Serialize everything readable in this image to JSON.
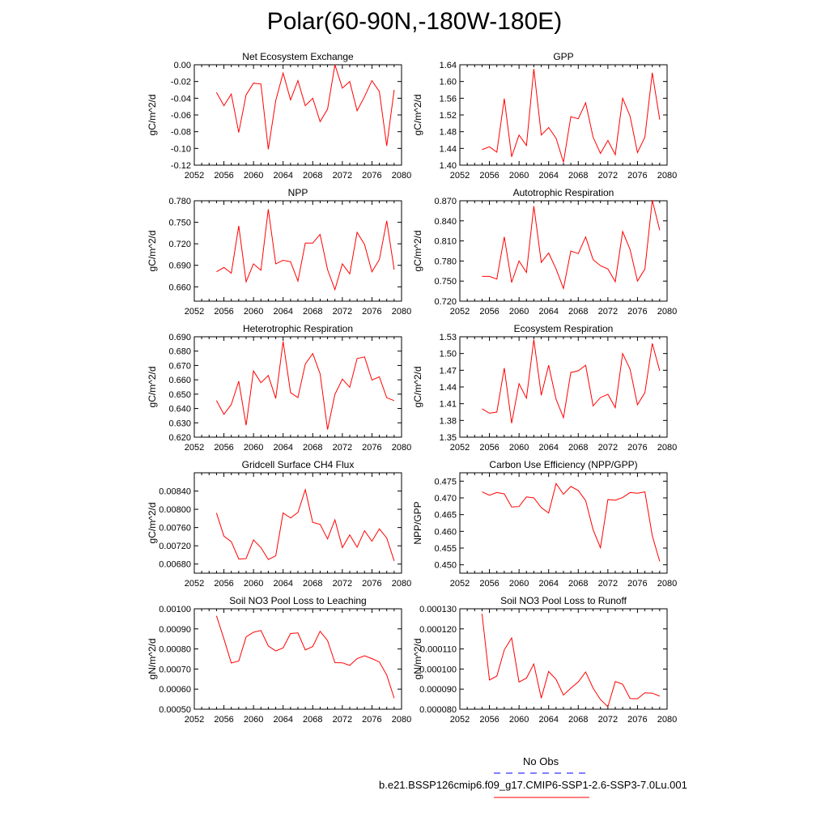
{
  "page": {
    "title": "Polar(60-90N,-180W-180E)"
  },
  "legend": {
    "entries": [
      {
        "label": "No Obs",
        "color": "#0000ff",
        "style": "dashed"
      },
      {
        "label": "b.e21.BSSP126cmip6.f09_g17.CMIP6-SSP1-2.6-SSP3-7.0Lu.001",
        "color": "#ff0000",
        "style": "solid"
      }
    ]
  },
  "chart_data": [
    {
      "type": "line",
      "title": "Net Ecosystem Exchange",
      "ylabel": "gC/m^2/d",
      "xlabel": "",
      "xlim": [
        2052,
        2080
      ],
      "ylim": [
        -0.12,
        0.0
      ],
      "xticks": [
        "2052",
        "2056",
        "2060",
        "2064",
        "2068",
        "2072",
        "2076",
        "2080"
      ],
      "yticks": [
        "0.00",
        "-0.02",
        "-0.04",
        "-0.06",
        "-0.08",
        "-0.10",
        "-0.12"
      ],
      "ytick_values": [
        0.0,
        -0.02,
        -0.04,
        -0.06,
        -0.08,
        -0.1,
        -0.12
      ],
      "x": [
        2055,
        2056,
        2057,
        2058,
        2059,
        2060,
        2061,
        2062,
        2063,
        2064,
        2065,
        2066,
        2067,
        2068,
        2069,
        2070,
        2071,
        2072,
        2073,
        2074,
        2075,
        2076,
        2077,
        2078,
        2079
      ],
      "series": [
        {
          "color": "#ff0000",
          "values": [
            -0.033,
            -0.049,
            -0.035,
            -0.081,
            -0.036,
            -0.022,
            -0.023,
            -0.101,
            -0.043,
            -0.01,
            -0.042,
            -0.019,
            -0.049,
            -0.04,
            -0.068,
            -0.053,
            0.0,
            -0.028,
            -0.02,
            -0.055,
            -0.038,
            -0.019,
            -0.032,
            -0.097,
            -0.03
          ]
        }
      ]
    },
    {
      "type": "line",
      "title": "GPP",
      "ylabel": "gC/m^2/d",
      "xlabel": "",
      "xlim": [
        2052,
        2080
      ],
      "ylim": [
        1.4,
        1.64
      ],
      "xticks": [
        "2052",
        "2056",
        "2060",
        "2064",
        "2068",
        "2072",
        "2076",
        "2080"
      ],
      "yticks": [
        "1.64",
        "1.60",
        "1.56",
        "1.52",
        "1.48",
        "1.44",
        "1.40"
      ],
      "ytick_values": [
        1.64,
        1.6,
        1.56,
        1.52,
        1.48,
        1.44,
        1.4
      ],
      "x": [
        2055,
        2056,
        2057,
        2058,
        2059,
        2060,
        2061,
        2062,
        2063,
        2064,
        2065,
        2066,
        2067,
        2068,
        2069,
        2070,
        2071,
        2072,
        2073,
        2074,
        2075,
        2076,
        2077,
        2078,
        2079
      ],
      "series": [
        {
          "color": "#ff0000",
          "values": [
            1.437,
            1.444,
            1.431,
            1.559,
            1.42,
            1.472,
            1.447,
            1.63,
            1.472,
            1.49,
            1.464,
            1.407,
            1.516,
            1.511,
            1.549,
            1.467,
            1.428,
            1.459,
            1.425,
            1.56,
            1.517,
            1.43,
            1.467,
            1.621,
            1.509
          ]
        }
      ]
    },
    {
      "type": "line",
      "title": "NPP",
      "ylabel": "gC/m^2/d",
      "xlabel": "",
      "xlim": [
        2052,
        2080
      ],
      "ylim": [
        0.64,
        0.78
      ],
      "xticks": [
        "2052",
        "2056",
        "2060",
        "2064",
        "2068",
        "2072",
        "2076",
        "2080"
      ],
      "yticks": [
        "0.780",
        "0.750",
        "0.720",
        "0.690",
        "0.660"
      ],
      "ytick_values": [
        0.78,
        0.75,
        0.72,
        0.69,
        0.66
      ],
      "x": [
        2055,
        2056,
        2057,
        2058,
        2059,
        2060,
        2061,
        2062,
        2063,
        2064,
        2065,
        2066,
        2067,
        2068,
        2069,
        2070,
        2071,
        2072,
        2073,
        2074,
        2075,
        2076,
        2077,
        2078,
        2079
      ],
      "series": [
        {
          "color": "#ff0000",
          "values": [
            0.681,
            0.687,
            0.679,
            0.745,
            0.667,
            0.692,
            0.683,
            0.768,
            0.692,
            0.697,
            0.695,
            0.668,
            0.721,
            0.721,
            0.733,
            0.684,
            0.656,
            0.692,
            0.678,
            0.736,
            0.719,
            0.681,
            0.698,
            0.752,
            0.684
          ]
        }
      ]
    },
    {
      "type": "line",
      "title": "Autotrophic Respiration",
      "ylabel": "gC/m^2/d",
      "xlabel": "",
      "xlim": [
        2052,
        2080
      ],
      "ylim": [
        0.72,
        0.87
      ],
      "xticks": [
        "2052",
        "2056",
        "2060",
        "2064",
        "2068",
        "2072",
        "2076",
        "2080"
      ],
      "yticks": [
        "0.870",
        "0.840",
        "0.810",
        "0.780",
        "0.750",
        "0.720"
      ],
      "ytick_values": [
        0.87,
        0.84,
        0.81,
        0.78,
        0.75,
        0.72
      ],
      "x": [
        2055,
        2056,
        2057,
        2058,
        2059,
        2060,
        2061,
        2062,
        2063,
        2064,
        2065,
        2066,
        2067,
        2068,
        2069,
        2070,
        2071,
        2072,
        2073,
        2074,
        2075,
        2076,
        2077,
        2078,
        2079
      ],
      "series": [
        {
          "color": "#ff0000",
          "values": [
            0.757,
            0.757,
            0.753,
            0.816,
            0.748,
            0.78,
            0.763,
            0.862,
            0.778,
            0.792,
            0.768,
            0.739,
            0.795,
            0.791,
            0.816,
            0.782,
            0.773,
            0.768,
            0.749,
            0.824,
            0.797,
            0.75,
            0.768,
            0.871,
            0.826
          ]
        }
      ]
    },
    {
      "type": "line",
      "title": "Heterotrophic Respiration",
      "ylabel": "gC/m^2/d",
      "xlabel": "",
      "xlim": [
        2052,
        2080
      ],
      "ylim": [
        0.62,
        0.69
      ],
      "xticks": [
        "2052",
        "2056",
        "2060",
        "2064",
        "2068",
        "2072",
        "2076",
        "2080"
      ],
      "yticks": [
        "0.690",
        "0.680",
        "0.670",
        "0.660",
        "0.650",
        "0.640",
        "0.630",
        "0.620"
      ],
      "ytick_values": [
        0.69,
        0.68,
        0.67,
        0.66,
        0.65,
        0.64,
        0.63,
        0.62
      ],
      "x": [
        2055,
        2056,
        2057,
        2058,
        2059,
        2060,
        2061,
        2062,
        2063,
        2064,
        2065,
        2066,
        2067,
        2068,
        2069,
        2070,
        2071,
        2072,
        2073,
        2074,
        2075,
        2076,
        2077,
        2078,
        2079
      ],
      "series": [
        {
          "color": "#ff0000",
          "values": [
            0.6455,
            0.6359,
            0.6428,
            0.659,
            0.6283,
            0.6662,
            0.658,
            0.663,
            0.647,
            0.6867,
            0.651,
            0.6476,
            0.671,
            0.6783,
            0.6642,
            0.6253,
            0.6498,
            0.6605,
            0.6548,
            0.6748,
            0.676,
            0.6598,
            0.6621,
            0.6475,
            0.6455
          ]
        }
      ]
    },
    {
      "type": "line",
      "title": "Ecosystem Respiration",
      "ylabel": "gC/m^2/d",
      "xlabel": "",
      "xlim": [
        2052,
        2080
      ],
      "ylim": [
        1.35,
        1.53
      ],
      "xticks": [
        "2052",
        "2056",
        "2060",
        "2064",
        "2068",
        "2072",
        "2076",
        "2080"
      ],
      "yticks": [
        "1.53",
        "1.50",
        "1.47",
        "1.44",
        "1.41",
        "1.38",
        "1.35"
      ],
      "ytick_values": [
        1.53,
        1.5,
        1.47,
        1.44,
        1.41,
        1.38,
        1.35
      ],
      "x": [
        2055,
        2056,
        2057,
        2058,
        2059,
        2060,
        2061,
        2062,
        2063,
        2064,
        2065,
        2066,
        2067,
        2068,
        2069,
        2070,
        2071,
        2072,
        2073,
        2074,
        2075,
        2076,
        2077,
        2078,
        2079
      ],
      "series": [
        {
          "color": "#ff0000",
          "values": [
            1.401,
            1.393,
            1.395,
            1.474,
            1.375,
            1.446,
            1.42,
            1.525,
            1.425,
            1.479,
            1.418,
            1.385,
            1.466,
            1.469,
            1.479,
            1.406,
            1.421,
            1.427,
            1.403,
            1.5,
            1.472,
            1.408,
            1.43,
            1.518,
            1.469
          ]
        }
      ]
    },
    {
      "type": "line",
      "title": "Gridcell Surface CH4 Flux",
      "ylabel": "gC/m^2/d",
      "xlabel": "",
      "xlim": [
        2052,
        2080
      ],
      "ylim": [
        0.0066,
        0.0088
      ],
      "xticks": [
        "2052",
        "2056",
        "2060",
        "2064",
        "2068",
        "2072",
        "2076",
        "2080"
      ],
      "yticks": [
        "0.00840",
        "0.00800",
        "0.00760",
        "0.00720",
        "0.00680"
      ],
      "ytick_values": [
        0.0084,
        0.008,
        0.0076,
        0.0072,
        0.0068
      ],
      "x": [
        2055,
        2056,
        2057,
        2058,
        2059,
        2060,
        2061,
        2062,
        2063,
        2064,
        2065,
        2066,
        2067,
        2068,
        2069,
        2070,
        2071,
        2072,
        2073,
        2074,
        2075,
        2076,
        2077,
        2078,
        2079
      ],
      "series": [
        {
          "color": "#ff0000",
          "values": [
            0.00792,
            0.00741,
            0.00729,
            0.00691,
            0.00692,
            0.00733,
            0.00716,
            0.0069,
            0.00698,
            0.00792,
            0.00781,
            0.00793,
            0.00843,
            0.00771,
            0.00767,
            0.00735,
            0.00777,
            0.00716,
            0.00744,
            0.00717,
            0.00753,
            0.0073,
            0.00757,
            0.00737,
            0.00687
          ]
        }
      ]
    },
    {
      "type": "line",
      "title": "Carbon Use Efficiency (NPP/GPP)",
      "ylabel": "NPP/GPP",
      "xlabel": "",
      "xlim": [
        2052,
        2080
      ],
      "ylim": [
        0.4475,
        0.4775
      ],
      "xticks": [
        "2052",
        "2056",
        "2060",
        "2064",
        "2068",
        "2072",
        "2076",
        "2080"
      ],
      "yticks": [
        "0.475",
        "0.470",
        "0.465",
        "0.460",
        "0.455",
        "0.450"
      ],
      "ytick_values": [
        0.475,
        0.47,
        0.465,
        0.46,
        0.455,
        0.45
      ],
      "x": [
        2055,
        2056,
        2057,
        2058,
        2059,
        2060,
        2061,
        2062,
        2063,
        2064,
        2065,
        2066,
        2067,
        2068,
        2069,
        2070,
        2071,
        2072,
        2073,
        2074,
        2075,
        2076,
        2077,
        2078,
        2079
      ],
      "series": [
        {
          "color": "#ff0000",
          "values": [
            0.4718,
            0.4708,
            0.4716,
            0.4712,
            0.4673,
            0.4674,
            0.4703,
            0.47,
            0.4671,
            0.4655,
            0.4743,
            0.4711,
            0.4734,
            0.4722,
            0.4692,
            0.4605,
            0.4551,
            0.4695,
            0.4693,
            0.4701,
            0.4716,
            0.4714,
            0.4718,
            0.4587,
            0.451
          ]
        }
      ]
    },
    {
      "type": "line",
      "title": "Soil NO3 Pool Loss to Leaching",
      "ylabel": "gN/m^2/d",
      "xlabel": "",
      "xlim": [
        2052,
        2080
      ],
      "ylim": [
        0.0005,
        0.001
      ],
      "xticks": [
        "2052",
        "2056",
        "2060",
        "2064",
        "2068",
        "2072",
        "2076",
        "2080"
      ],
      "yticks": [
        "0.00100",
        "0.00090",
        "0.00080",
        "0.00070",
        "0.00060",
        "0.00050"
      ],
      "ytick_values": [
        0.001,
        0.0009,
        0.0008,
        0.0007,
        0.0006,
        0.0005
      ],
      "x": [
        2055,
        2056,
        2057,
        2058,
        2059,
        2060,
        2061,
        2062,
        2063,
        2064,
        2065,
        2066,
        2067,
        2068,
        2069,
        2070,
        2071,
        2072,
        2073,
        2074,
        2075,
        2076,
        2077,
        2078,
        2079
      ],
      "series": [
        {
          "color": "#ff0000",
          "values": [
            0.000965,
            0.00085,
            0.00073,
            0.00074,
            0.00086,
            0.000883,
            0.000892,
            0.000815,
            0.00079,
            0.000805,
            0.000877,
            0.00088,
            0.000795,
            0.000812,
            0.000888,
            0.000842,
            0.000732,
            0.000731,
            0.000718,
            0.000752,
            0.000766,
            0.000752,
            0.000735,
            0.00067,
            0.000555
          ]
        }
      ]
    },
    {
      "type": "line",
      "title": "Soil NO3 Pool Loss to Runoff",
      "ylabel": "gN/m^2/d",
      "xlabel": "",
      "xlim": [
        2052,
        2080
      ],
      "ylim": [
        8e-05,
        0.00013
      ],
      "xticks": [
        "2052",
        "2056",
        "2060",
        "2064",
        "2068",
        "2072",
        "2076",
        "2080"
      ],
      "yticks": [
        "0.000130",
        "0.000120",
        "0.000110",
        "0.000100",
        "0.000090",
        "0.000080"
      ],
      "ytick_values": [
        0.00013,
        0.00012,
        0.00011,
        0.0001,
        9e-05,
        8e-05
      ],
      "x": [
        2055,
        2056,
        2057,
        2058,
        2059,
        2060,
        2061,
        2062,
        2063,
        2064,
        2065,
        2066,
        2067,
        2068,
        2069,
        2070,
        2071,
        2072,
        2073,
        2074,
        2075,
        2076,
        2077,
        2078,
        2079
      ],
      "series": [
        {
          "color": "#ff0000",
          "values": [
            0.0001275,
            9.45e-05,
            9.65e-05,
            0.0001095,
            0.0001155,
            9.35e-05,
            9.55e-05,
            0.0001025,
            8.55e-05,
            9.88e-05,
            9.48e-05,
            8.7e-05,
            9.05e-05,
            9.36e-05,
            9.85e-05,
            9.05e-05,
            8.48e-05,
            8.12e-05,
            9.38e-05,
            9.24e-05,
            8.53e-05,
            8.52e-05,
            8.82e-05,
            8.8e-05,
            8.65e-05
          ]
        }
      ]
    }
  ]
}
